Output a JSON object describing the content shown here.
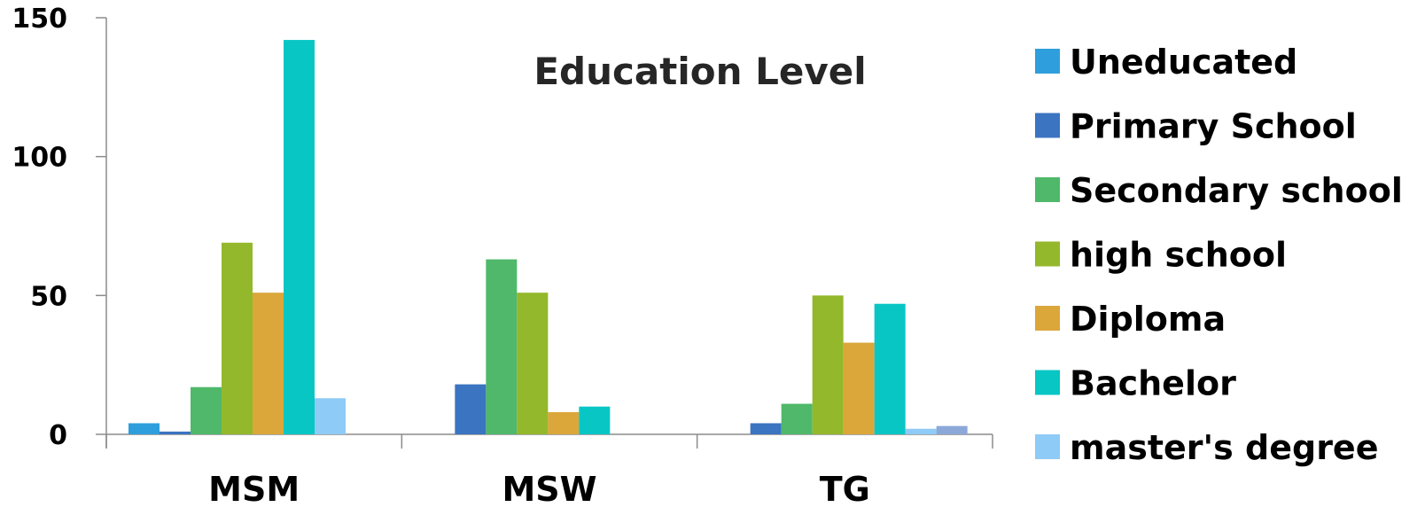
{
  "chart_data": {
    "type": "bar",
    "title": "Education Level",
    "xlabel": "",
    "ylabel": "",
    "categories": [
      "MSM",
      "MSW",
      "TG"
    ],
    "ylim": [
      0,
      150
    ],
    "yticks": [
      0,
      50,
      100,
      150
    ],
    "grid": false,
    "legend_position": "right",
    "series": [
      {
        "name": "Uneducated",
        "color": "#2e9fdc",
        "values": [
          4,
          0,
          0
        ]
      },
      {
        "name": "Primary School",
        "color": "#3b74c0",
        "values": [
          1,
          18,
          4
        ]
      },
      {
        "name": "Secondary school",
        "color": "#4fb86a",
        "values": [
          17,
          63,
          11
        ]
      },
      {
        "name": "high school",
        "color": "#93b82b",
        "values": [
          69,
          51,
          50
        ]
      },
      {
        "name": "Diploma",
        "color": "#dba73a",
        "values": [
          51,
          8,
          33
        ]
      },
      {
        "name": "Bachelor",
        "color": "#08c6c4",
        "values": [
          142,
          10,
          47
        ]
      },
      {
        "name": "master's degree",
        "color": "#8ecbf6",
        "values": [
          13,
          0,
          2
        ]
      }
    ],
    "extra_bars": [
      {
        "category": "TG",
        "color": "#8ba8d9",
        "value": 3
      }
    ]
  }
}
